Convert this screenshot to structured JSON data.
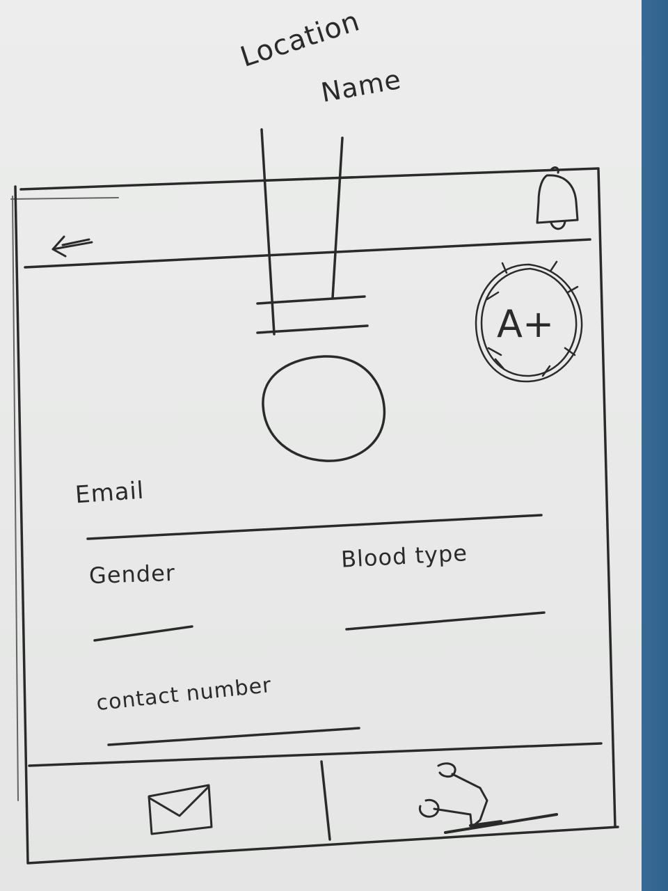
{
  "annotations": {
    "location": "Location",
    "name": "Name"
  },
  "header": {
    "back_icon": "back-arrow-icon",
    "notification_icon": "bell-icon"
  },
  "profile": {
    "avatar": "avatar-placeholder",
    "blood_badge": "A+"
  },
  "form": {
    "email_label": "Email",
    "gender_label": "Gender",
    "blood_type_label": "Blood type",
    "contact_label": "contact number"
  },
  "bottom_nav": {
    "left_icon": "envelope-icon",
    "right_icon": "scooter-icon"
  },
  "colors": {
    "ink": "#2a2a2a",
    "paper": "#eaebea",
    "background_fabric": "#2f628d"
  }
}
